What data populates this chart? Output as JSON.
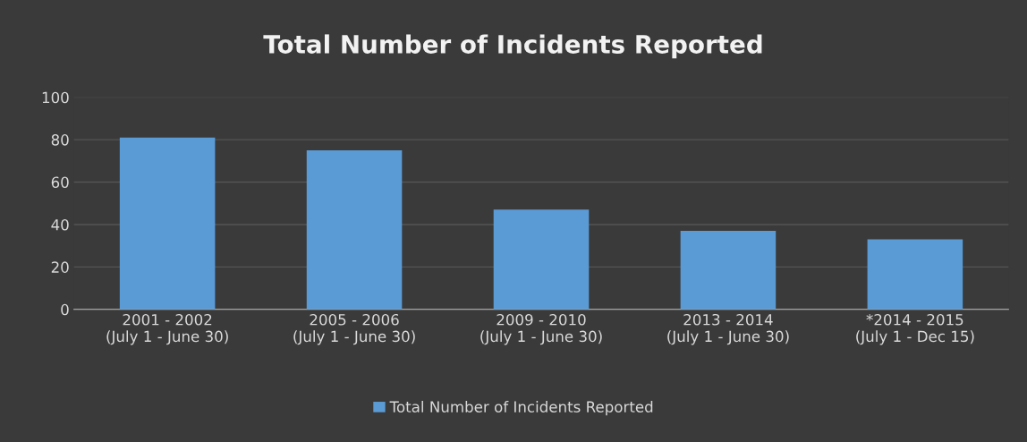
{
  "chart_data": {
    "type": "bar",
    "title": "Total Number of Incidents Reported",
    "categories": [
      "2001 - 2002\n(July 1 - June 30)",
      "2005 - 2006\n(July 1 - June 30)",
      "2009 - 2010\n(July 1 - June 30)",
      "2013 - 2014\n(July 1 - June 30)",
      "*2014 - 2015\n(July 1 - Dec 15)"
    ],
    "series": [
      {
        "name": "Total Number of Incidents Reported",
        "color": "#5b9bd5",
        "values": [
          81,
          75,
          47,
          37,
          33
        ]
      }
    ],
    "ylim": [
      0,
      100
    ],
    "yticks": [
      0,
      20,
      40,
      60,
      80,
      100
    ],
    "grid": "y",
    "legend": "bottom"
  }
}
